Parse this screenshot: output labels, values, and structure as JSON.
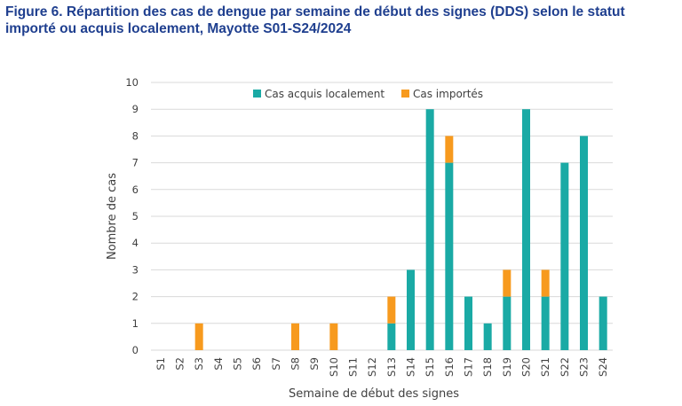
{
  "colors": {
    "local": "#1aaaa5",
    "imported": "#f79a1e",
    "grid": "#d9d9d9",
    "title": "#1f3f8f"
  },
  "chart_data": {
    "type": "bar",
    "stacked": true,
    "title": "Figure 6. Répartition des cas de dengue par semaine de début des signes (DDS) selon le statut importé ou acquis localement, Mayotte S01-S24/2024",
    "xlabel": "Semaine de début des signes",
    "ylabel": "Nombre de cas",
    "ylim": [
      0,
      10
    ],
    "yticks": [
      "0",
      "1",
      "2",
      "3",
      "4",
      "5",
      "6",
      "7",
      "8",
      "9",
      "10"
    ],
    "grid": true,
    "legend_position": "top-center",
    "categories": [
      "S1",
      "S2",
      "S3",
      "S4",
      "S5",
      "S6",
      "S7",
      "S8",
      "S9",
      "S10",
      "S11",
      "S12",
      "S13",
      "S14",
      "S15",
      "S16",
      "S17",
      "S18",
      "S19",
      "S20",
      "S21",
      "S22",
      "S23",
      "S24"
    ],
    "series": [
      {
        "name": "Cas acquis localement",
        "values": [
          0,
          0,
          0,
          0,
          0,
          0,
          0,
          0,
          0,
          0,
          0,
          0,
          1,
          3,
          9,
          7,
          2,
          1,
          2,
          9,
          2,
          7,
          8,
          2
        ]
      },
      {
        "name": "Cas importés",
        "values": [
          0,
          0,
          1,
          0,
          0,
          0,
          0,
          1,
          0,
          1,
          0,
          0,
          1,
          0,
          0,
          1,
          0,
          0,
          1,
          0,
          1,
          0,
          0,
          0
        ]
      }
    ]
  }
}
